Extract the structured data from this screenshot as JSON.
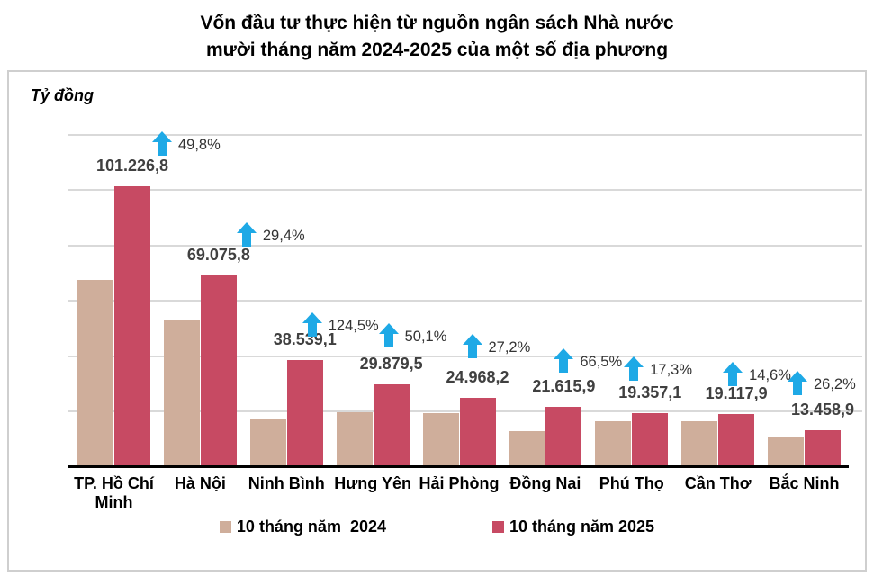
{
  "title": {
    "line1": "Vốn đầu tư thực hiện từ nguồn ngân sách Nhà nước",
    "line2": "mười tháng năm 2024-2025 của một số địa phương"
  },
  "chart_data": {
    "type": "bar",
    "title": "Vốn đầu tư thực hiện từ nguồn ngân sách Nhà nước mười tháng năm 2024-2025 của một số địa phương",
    "unit_label": "Tỷ đồng",
    "categories": [
      "TP. Hồ Chí Minh",
      "Hà Nội",
      "Ninh Bình",
      "Hưng Yên",
      "Hải Phòng",
      "Đồng Nai",
      "Phú Thọ",
      "Cần Thơ",
      "Bắc Ninh"
    ],
    "series": [
      {
        "name": "10 tháng năm  2024",
        "color": "#CFAE9B",
        "values": [
          67574.6,
          53381.6,
          17166.6,
          19906.4,
          19629.1,
          12982.5,
          16502.2,
          16682.3,
          10664.7
        ]
      },
      {
        "name": "10 tháng năm 2025",
        "color": "#C74A63",
        "values": [
          101226.8,
          69075.8,
          38539.1,
          29879.5,
          24968.2,
          21615.9,
          19357.1,
          19117.9,
          13458.9
        ],
        "value_labels": [
          "101.226,8",
          "69.075,8",
          "38.539,1",
          "29.879,5",
          "24.968,2",
          "21.615,9",
          "19.357,1",
          "19.117,9",
          "13.458,9"
        ]
      }
    ],
    "growth_labels": [
      "49,8%",
      "29,4%",
      "124,5%",
      "50,1%",
      "27,2%",
      "66,5%",
      "17,3%",
      "14,6%",
      "26,2%"
    ],
    "ylim": [
      0,
      120000
    ],
    "gridline_step": 20000,
    "grid": true,
    "y_tick_labels_shown": false,
    "legend_position": "bottom",
    "colors": {
      "bar_2024": "#CFAE9B",
      "bar_2025": "#C74A63",
      "growth_arrow": "#1EA9E6",
      "gridline": "#D9D9D9",
      "axis": "#000000",
      "value_label": "#404040",
      "percent_label": "#333333"
    }
  }
}
